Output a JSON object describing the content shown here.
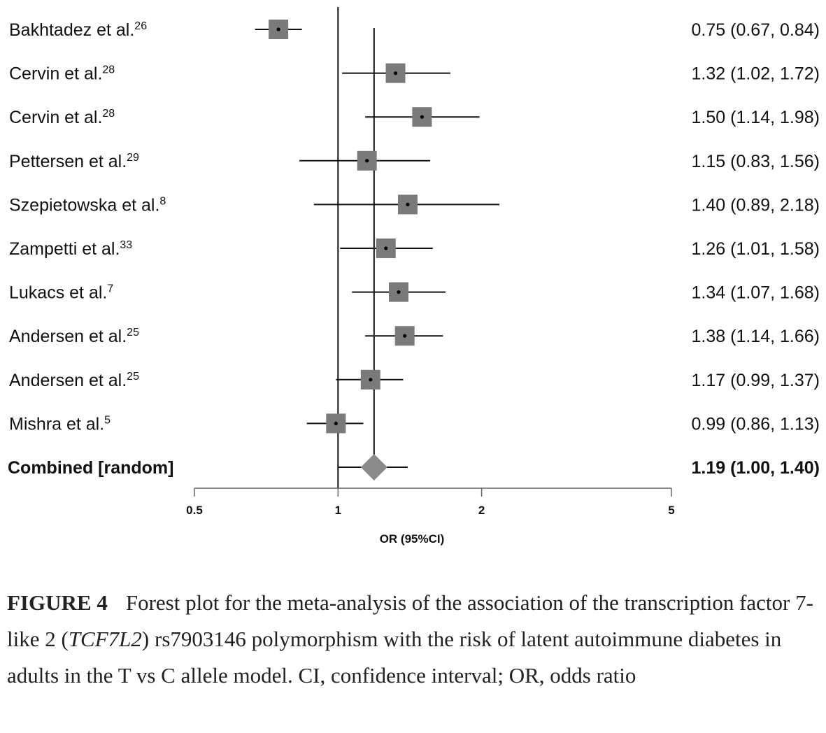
{
  "chart_data": {
    "type": "forest",
    "xlabel": "OR (95%CI)",
    "x_scale": "log",
    "xlim": [
      0.5,
      5
    ],
    "xticks": [
      0.5,
      1,
      2,
      5
    ],
    "reference_line": 1,
    "pooled_line": 1.19,
    "studies": [
      {
        "label": "Bakhtadez et al.",
        "ref": "26",
        "or": 0.75,
        "lo": 0.67,
        "hi": 0.84,
        "text": "0.75 (0.67, 0.84)"
      },
      {
        "label": "Cervin et al.",
        "ref": "28",
        "or": 1.32,
        "lo": 1.02,
        "hi": 1.72,
        "text": "1.32 (1.02, 1.72)"
      },
      {
        "label": "Cervin et al.",
        "ref": "28",
        "or": 1.5,
        "lo": 1.14,
        "hi": 1.98,
        "text": "1.50 (1.14, 1.98)"
      },
      {
        "label": "Pettersen et al.",
        "ref": "29",
        "or": 1.15,
        "lo": 0.83,
        "hi": 1.56,
        "text": "1.15 (0.83, 1.56)"
      },
      {
        "label": "Szepietowska et al.",
        "ref": "8",
        "or": 1.4,
        "lo": 0.89,
        "hi": 2.18,
        "text": "1.40 (0.89, 2.18)"
      },
      {
        "label": "Zampetti et al.",
        "ref": "33",
        "or": 1.26,
        "lo": 1.01,
        "hi": 1.58,
        "text": "1.26 (1.01, 1.58)"
      },
      {
        "label": "Lukacs et al.",
        "ref": "7",
        "or": 1.34,
        "lo": 1.07,
        "hi": 1.68,
        "text": "1.34 (1.07, 1.68)"
      },
      {
        "label": "Andersen et al.",
        "ref": "25",
        "or": 1.38,
        "lo": 1.14,
        "hi": 1.66,
        "text": "1.38 (1.14, 1.66)"
      },
      {
        "label": "Andersen et al.",
        "ref": "25",
        "or": 1.17,
        "lo": 0.99,
        "hi": 1.37,
        "text": "1.17 (0.99, 1.37)"
      },
      {
        "label": "Mishra et al.",
        "ref": "5",
        "or": 0.99,
        "lo": 0.86,
        "hi": 1.13,
        "text": "0.99 (0.86, 1.13)"
      }
    ],
    "combined": {
      "label": "Combined [random]",
      "or": 1.19,
      "lo": 1.0,
      "hi": 1.4,
      "text": "1.19 (1.00, 1.40)"
    },
    "colors": {
      "box": "#7a7a7a",
      "diamond": "#8a8a8a",
      "line": "#111111"
    }
  },
  "caption": {
    "figure_label": "FIGURE 4",
    "text_before": "Forest plot for the meta-analysis of the association of the transcription factor 7-like 2 (",
    "gene": "TCF7L2",
    "text_after": ") rs7903146 polymorphism with the risk of latent autoimmune diabetes in adults in the T vs C allele model. CI, confidence interval; OR, odds ratio"
  }
}
